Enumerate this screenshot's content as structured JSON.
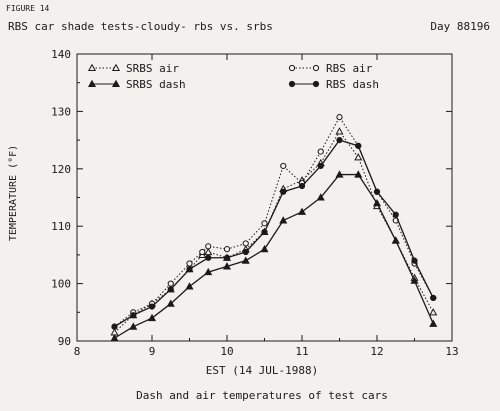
{
  "figure_label": "FIGURE 14",
  "chart_data": {
    "type": "line",
    "title": "RBS car shade tests-cloudy- rbs vs. srbs",
    "day_label": "Day 88196",
    "xlabel": "EST (14 JUL-1988)",
    "ylabel": "TEMPERATURE (°F)",
    "caption": "Dash and air temperatures of test cars",
    "xlim": [
      8,
      13
    ],
    "ylim": [
      90,
      140
    ],
    "xticks": [
      8,
      9,
      10,
      11,
      12,
      13
    ],
    "yticks": [
      90,
      100,
      110,
      120,
      130,
      140
    ],
    "grid": false,
    "legend_position": "top",
    "series": [
      {
        "name": "SRBS air",
        "line_style": "dotted",
        "marker": "open-triangle",
        "x": [
          8.5,
          8.75,
          9.0,
          9.25,
          9.5,
          9.67,
          9.75,
          10.0,
          10.25,
          10.5,
          10.75,
          11.0,
          11.25,
          11.5,
          11.75,
          12.0,
          12.25,
          12.5,
          12.75
        ],
        "y": [
          91.5,
          94.5,
          96.5,
          99.0,
          102.5,
          105.0,
          105.5,
          104.5,
          106.0,
          109.0,
          116.5,
          118.0,
          121.0,
          126.5,
          122.0,
          113.5,
          107.5,
          101.0,
          95.0
        ]
      },
      {
        "name": "SRBS dash",
        "line_style": "solid",
        "marker": "filled-triangle",
        "x": [
          8.5,
          8.75,
          9.0,
          9.25,
          9.5,
          9.75,
          10.0,
          10.25,
          10.5,
          10.75,
          11.0,
          11.25,
          11.5,
          11.75,
          12.0,
          12.25,
          12.5,
          12.75
        ],
        "y": [
          90.5,
          92.5,
          94.0,
          96.5,
          99.5,
          102.0,
          103.0,
          104.0,
          106.0,
          111.0,
          112.5,
          115.0,
          119.0,
          119.0,
          114.0,
          107.5,
          100.5,
          93.0
        ]
      },
      {
        "name": "RBS air",
        "line_style": "dotted",
        "marker": "open-circle",
        "x": [
          8.5,
          8.75,
          9.0,
          9.25,
          9.5,
          9.67,
          9.75,
          10.0,
          10.25,
          10.5,
          10.75,
          11.0,
          11.25,
          11.5,
          11.75,
          12.0,
          12.25,
          12.5,
          12.75
        ],
        "y": [
          92.5,
          95.0,
          96.5,
          100.0,
          103.5,
          105.5,
          106.5,
          106.0,
          107.0,
          110.5,
          120.5,
          117.5,
          123.0,
          129.0,
          124.0,
          116.0,
          111.0,
          103.5,
          97.5
        ]
      },
      {
        "name": "RBS dash",
        "line_style": "solid",
        "marker": "filled-circle",
        "x": [
          8.5,
          8.75,
          9.0,
          9.25,
          9.5,
          9.75,
          10.0,
          10.25,
          10.5,
          10.75,
          11.0,
          11.25,
          11.5,
          11.75,
          12.0,
          12.25,
          12.5,
          12.75
        ],
        "y": [
          92.5,
          94.5,
          96.0,
          99.0,
          102.5,
          104.5,
          104.5,
          105.5,
          109.0,
          116.0,
          117.0,
          120.5,
          125.0,
          124.0,
          116.0,
          112.0,
          104.0,
          97.5
        ]
      }
    ]
  }
}
